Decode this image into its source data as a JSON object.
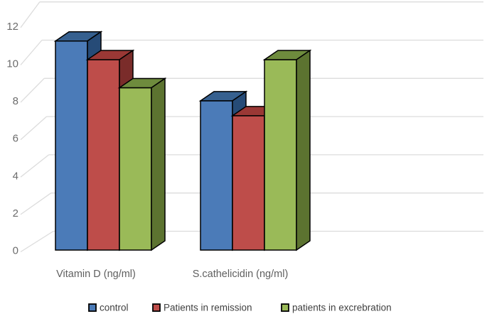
{
  "chart_data": {
    "type": "bar",
    "style": "3d-clustered-column",
    "title": "",
    "xlabel": "",
    "ylabel": "",
    "categories": [
      "Vitamin D (ng/ml)",
      "S.cathelicidin (ng/ml)"
    ],
    "series": [
      {
        "name": "control",
        "values": [
          11,
          7.8
        ],
        "colors": {
          "front": "#4B7BB8",
          "top": "#36608F",
          "side": "#264B77"
        }
      },
      {
        "name": "Patients in remission",
        "values": [
          10,
          7
        ],
        "colors": {
          "front": "#BE4D4A",
          "top": "#9A3835",
          "side": "#7A2C2A"
        }
      },
      {
        "name": "patients in excrebration",
        "values": [
          8.5,
          10
        ],
        "colors": {
          "front": "#9ABA58",
          "top": "#6E8B3D",
          "side": "#5C7330"
        }
      }
    ],
    "ylim": [
      0,
      12
    ],
    "yticks": [
      0,
      2,
      4,
      6,
      8,
      10,
      12
    ],
    "grid": true,
    "legend_position": "bottom"
  },
  "colors": {
    "background": "#FFFFFF",
    "gridline": "#DCDCDC",
    "bar_outline": "#000000",
    "tick_text": "#6C6C6C",
    "category_text": "#5F5F5F",
    "legend_text": "#404040"
  }
}
